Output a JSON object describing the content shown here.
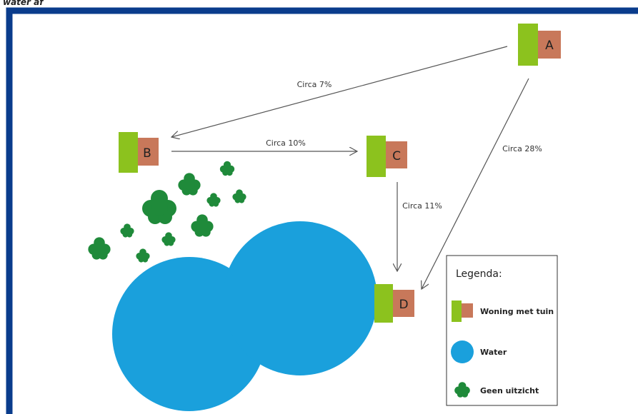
{
  "header": {
    "title": "water af"
  },
  "nodes": [
    {
      "label": "A"
    },
    {
      "label": "B"
    },
    {
      "label": "C"
    },
    {
      "label": "D"
    }
  ],
  "edges": [
    {
      "label": "Circa 7%"
    },
    {
      "label": "Circa 10%"
    },
    {
      "label": "Circa 11%"
    },
    {
      "label": "Circa 28%"
    }
  ],
  "legend": {
    "title": "Legenda:",
    "items": [
      "Woning met tuin",
      "Water",
      "Geen uitzicht"
    ]
  }
}
